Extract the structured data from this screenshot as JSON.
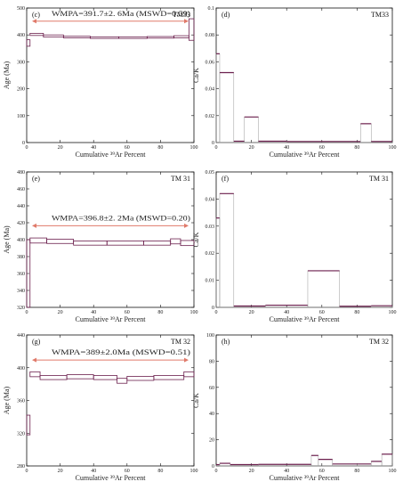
{
  "chart_data": [
    {
      "panel": "(c)",
      "sample": "TM33",
      "type": "step",
      "xlabel": "Cumulative ³⁹Ar Percent",
      "ylabel": "Age (Ma)",
      "xlim": [
        0,
        100
      ],
      "ylim": [
        0,
        500
      ],
      "xticks": [
        0,
        20,
        40,
        60,
        80,
        100
      ],
      "yticks": [
        0,
        100,
        200,
        300,
        400,
        500
      ],
      "annotation": "WMPA=391.7±2. 6Ma (MSWD=0.59)",
      "plateau_range": [
        0,
        100
      ],
      "steps": [
        {
          "x0": 0,
          "x1": 2,
          "y": 370,
          "err": 12
        },
        {
          "x0": 2,
          "x1": 10,
          "y": 402,
          "err": 4
        },
        {
          "x0": 10,
          "x1": 22,
          "y": 396,
          "err": 4
        },
        {
          "x0": 22,
          "x1": 38,
          "y": 392,
          "err": 3
        },
        {
          "x0": 38,
          "x1": 55,
          "y": 390,
          "err": 3
        },
        {
          "x0": 55,
          "x1": 72,
          "y": 390,
          "err": 3
        },
        {
          "x0": 72,
          "x1": 88,
          "y": 391,
          "err": 3
        },
        {
          "x0": 88,
          "x1": 97,
          "y": 393,
          "err": 4
        },
        {
          "x0": 97,
          "x1": 100,
          "y": 420,
          "err": 40
        }
      ]
    },
    {
      "panel": "(d)",
      "sample": "TM33",
      "type": "step",
      "xlabel": "Cumulative ³⁹Ar Percent",
      "ylabel": "Ca/K",
      "xlim": [
        0,
        100
      ],
      "ylim": [
        0,
        0.1
      ],
      "xticks": [
        0,
        20,
        40,
        60,
        80,
        100
      ],
      "yticks": [
        0,
        0.02,
        0.04,
        0.06,
        0.08,
        0.1
      ],
      "steps": [
        {
          "x0": 0,
          "x1": 2,
          "y": 0.066
        },
        {
          "x0": 2,
          "x1": 10,
          "y": 0.052
        },
        {
          "x0": 10,
          "x1": 16,
          "y": 0.001
        },
        {
          "x0": 16,
          "x1": 24,
          "y": 0.019
        },
        {
          "x0": 24,
          "x1": 40,
          "y": 0.001
        },
        {
          "x0": 40,
          "x1": 82,
          "y": 0.0008
        },
        {
          "x0": 82,
          "x1": 88,
          "y": 0.014
        },
        {
          "x0": 88,
          "x1": 100,
          "y": 0.0008
        }
      ]
    },
    {
      "panel": "(e)",
      "sample": "TM 31",
      "type": "step",
      "xlabel": "Cumulative ³⁹Ar Percent",
      "ylabel": "Age (Ma)",
      "xlim": [
        0,
        100
      ],
      "ylim": [
        320,
        480
      ],
      "xticks": [
        0,
        20,
        40,
        60,
        80,
        100
      ],
      "yticks": [
        320,
        340,
        360,
        380,
        400,
        420,
        440,
        460,
        480
      ],
      "annotation": "WMPA=396.8±2. 2Ma (MSWD=0.20)",
      "plateau_range": [
        0,
        100
      ],
      "steps": [
        {
          "x0": 0,
          "x1": 2,
          "y": 360,
          "err": 40
        },
        {
          "x0": 2,
          "x1": 12,
          "y": 399,
          "err": 3
        },
        {
          "x0": 12,
          "x1": 28,
          "y": 398,
          "err": 2.5
        },
        {
          "x0": 28,
          "x1": 48,
          "y": 396,
          "err": 2.5
        },
        {
          "x0": 48,
          "x1": 70,
          "y": 396,
          "err": 2.5
        },
        {
          "x0": 70,
          "x1": 86,
          "y": 396,
          "err": 2.5
        },
        {
          "x0": 86,
          "x1": 92,
          "y": 398,
          "err": 3
        },
        {
          "x0": 92,
          "x1": 100,
          "y": 396,
          "err": 3
        }
      ]
    },
    {
      "panel": "(f)",
      "sample": "TM 31",
      "type": "step",
      "xlabel": "Cumulative ³⁹Ar Percent",
      "ylabel": "Ca/K",
      "xlim": [
        0,
        100
      ],
      "ylim": [
        0,
        0.05
      ],
      "xticks": [
        0,
        20,
        40,
        60,
        80,
        100
      ],
      "yticks": [
        0,
        0.01,
        0.02,
        0.03,
        0.04,
        0.05
      ],
      "steps": [
        {
          "x0": 0,
          "x1": 2,
          "y": 0.033
        },
        {
          "x0": 2,
          "x1": 10,
          "y": 0.042
        },
        {
          "x0": 10,
          "x1": 28,
          "y": 0.0005
        },
        {
          "x0": 28,
          "x1": 52,
          "y": 0.0008
        },
        {
          "x0": 52,
          "x1": 70,
          "y": 0.0135
        },
        {
          "x0": 70,
          "x1": 88,
          "y": 0.0004
        },
        {
          "x0": 88,
          "x1": 100,
          "y": 0.0006
        }
      ]
    },
    {
      "panel": "(g)",
      "sample": "TM 32",
      "type": "step",
      "xlabel": "Cumulative ³⁹Ar Percent",
      "ylabel": "Age (Ma)",
      "xlim": [
        0,
        100
      ],
      "ylim": [
        280,
        440
      ],
      "xticks": [
        0,
        20,
        40,
        60,
        80,
        100
      ],
      "yticks": [
        280,
        320,
        360,
        400,
        440
      ],
      "annotation": "WMPA=389±2.0Ma (MSWD=0.51)",
      "plateau_range": [
        0,
        100
      ],
      "steps": [
        {
          "x0": 0,
          "x1": 2,
          "y": 330,
          "err": 12
        },
        {
          "x0": 2,
          "x1": 8,
          "y": 392,
          "err": 3
        },
        {
          "x0": 8,
          "x1": 24,
          "y": 388,
          "err": 2.5
        },
        {
          "x0": 24,
          "x1": 40,
          "y": 389,
          "err": 2.5
        },
        {
          "x0": 40,
          "x1": 54,
          "y": 388,
          "err": 2.5
        },
        {
          "x0": 54,
          "x1": 60,
          "y": 384,
          "err": 3
        },
        {
          "x0": 60,
          "x1": 76,
          "y": 387,
          "err": 2.5
        },
        {
          "x0": 76,
          "x1": 94,
          "y": 388,
          "err": 2.5
        },
        {
          "x0": 94,
          "x1": 100,
          "y": 392,
          "err": 3
        }
      ]
    },
    {
      "panel": "(h)",
      "sample": "TM 32",
      "type": "step",
      "xlabel": "Cumulative ³⁹Ar Percent",
      "ylabel": "Ca/K",
      "xlim": [
        0,
        100
      ],
      "ylim": [
        0,
        100
      ],
      "xticks": [
        0,
        20,
        40,
        60,
        80,
        100
      ],
      "yticks": [
        0,
        20,
        40,
        60,
        80,
        100
      ],
      "steps": [
        {
          "x0": 0,
          "x1": 2,
          "y": 1
        },
        {
          "x0": 2,
          "x1": 8,
          "y": 2
        },
        {
          "x0": 8,
          "x1": 24,
          "y": 1
        },
        {
          "x0": 24,
          "x1": 54,
          "y": 1.2
        },
        {
          "x0": 54,
          "x1": 58,
          "y": 8
        },
        {
          "x0": 58,
          "x1": 66,
          "y": 5
        },
        {
          "x0": 66,
          "x1": 80,
          "y": 1.5
        },
        {
          "x0": 80,
          "x1": 88,
          "y": 1.5
        },
        {
          "x0": 88,
          "x1": 94,
          "y": 3.5
        },
        {
          "x0": 94,
          "x1": 100,
          "y": 9
        }
      ]
    }
  ],
  "colors": {
    "step_outline": "#6b1f4d",
    "plateau_arrow": "#e07a6a",
    "axis": "#111111"
  }
}
